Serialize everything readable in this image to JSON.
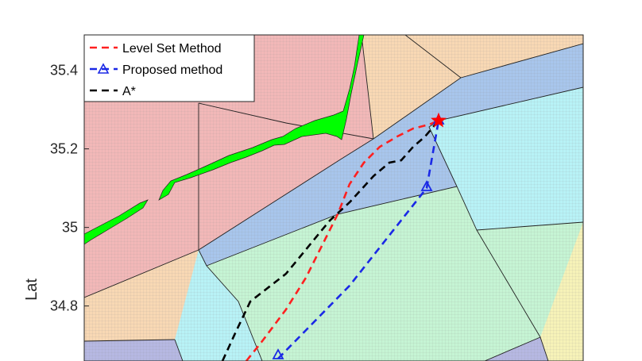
{
  "chart_data": {
    "type": "line",
    "title": "",
    "xlabel": "",
    "ylabel": "Lat",
    "ylim": [
      34.66,
      35.49
    ],
    "yticks": [
      34.8,
      35,
      35.2,
      35.4
    ],
    "ytick_labels": [
      "34.8",
      "35",
      "35.2",
      "35.4"
    ],
    "grid": false,
    "legend_position": "top-left",
    "series": [
      {
        "name": "Level Set Method",
        "color": "#ff2020",
        "style": "dashed",
        "marker": "none",
        "points": [
          [
            310,
            455
          ],
          [
            330,
            430
          ],
          [
            360,
            390
          ],
          [
            385,
            350
          ],
          [
            405,
            310
          ],
          [
            425,
            270
          ],
          [
            440,
            232
          ],
          [
            458,
            205
          ],
          [
            478,
            185
          ],
          [
            500,
            172
          ],
          [
            520,
            162
          ],
          [
            540,
            157
          ],
          [
            552,
            152
          ]
        ]
      },
      {
        "name": "Proposed method",
        "color": "#1a28e6",
        "style": "dashed",
        "marker": "triangle",
        "points": [
          [
            350,
            452
          ],
          [
            440,
            360
          ],
          [
            537,
            237
          ],
          [
            552,
            152
          ]
        ],
        "marker_points": [
          [
            350,
            448
          ],
          [
            537,
            236
          ],
          [
            552,
            152
          ]
        ]
      },
      {
        "name": "A*",
        "color": "#000000",
        "style": "dashed",
        "marker": "none",
        "points": [
          [
            280,
            455
          ],
          [
            296,
            420
          ],
          [
            315,
            380
          ],
          [
            360,
            345
          ],
          [
            415,
            278
          ],
          [
            440,
            255
          ],
          [
            470,
            222
          ],
          [
            490,
            205
          ],
          [
            505,
            202
          ],
          [
            520,
            185
          ],
          [
            535,
            172
          ],
          [
            552,
            152
          ]
        ]
      }
    ],
    "start_marker": {
      "shape": "star",
      "color": "#ff0000",
      "at": [
        552,
        152
      ]
    }
  },
  "colors": {
    "red_region": "#f2b8b8",
    "orange_region": "#f8d8b4",
    "blue_region": "#a8c6ec",
    "cyan_region": "#b8f2f6",
    "mint_region": "#c6f4d4",
    "yellow_region": "#f6f2b8",
    "purple_region": "#b6b8e2",
    "land": "#00ff00"
  }
}
